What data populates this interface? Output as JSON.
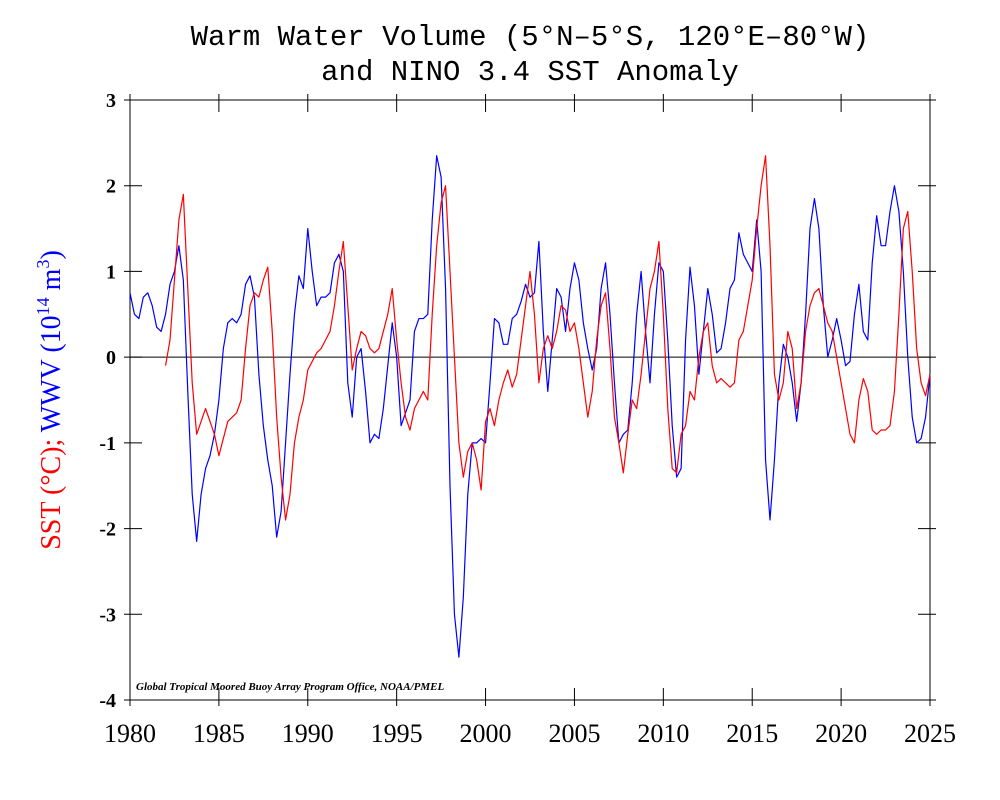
{
  "chart_data": {
    "type": "line",
    "title": [
      "Warm Water Volume (5°N–5°S, 120°E–80°W)",
      "and NINO 3.4 SST Anomaly"
    ],
    "ylabel": {
      "sst": "SST (°C);",
      "wwv": [
        "WWV (10",
        "14",
        " m",
        "3",
        ")"
      ]
    },
    "annotation": "Global Tropical Moored Buoy Array Program Office, NOAA/PMEL",
    "xlim": [
      1980,
      2025
    ],
    "xticks": [
      1980,
      1985,
      1990,
      1995,
      2000,
      2005,
      2010,
      2015,
      2020,
      2025
    ],
    "ylim": [
      -4,
      3
    ],
    "yticks": [
      -4,
      -3,
      -2,
      -1,
      0,
      1,
      2,
      3
    ],
    "zero_line": true,
    "x": [
      1980,
      1980.25,
      1980.5,
      1980.75,
      1981,
      1981.25,
      1981.5,
      1981.75,
      1982,
      1982.25,
      1982.5,
      1982.75,
      1983,
      1983.25,
      1983.5,
      1983.75,
      1984,
      1984.25,
      1984.5,
      1984.75,
      1985,
      1985.25,
      1985.5,
      1985.75,
      1986,
      1986.25,
      1986.5,
      1986.75,
      1987,
      1987.25,
      1987.5,
      1987.75,
      1988,
      1988.25,
      1988.5,
      1988.75,
      1989,
      1989.25,
      1989.5,
      1989.75,
      1990,
      1990.25,
      1990.5,
      1990.75,
      1991,
      1991.25,
      1991.5,
      1991.75,
      1992,
      1992.25,
      1992.5,
      1992.75,
      1993,
      1993.25,
      1993.5,
      1993.75,
      1994,
      1994.25,
      1994.5,
      1994.75,
      1995,
      1995.25,
      1995.5,
      1995.75,
      1996,
      1996.25,
      1996.5,
      1996.75,
      1997,
      1997.25,
      1997.5,
      1997.75,
      1998,
      1998.25,
      1998.5,
      1998.75,
      1999,
      1999.25,
      1999.5,
      1999.75,
      2000,
      2000.25,
      2000.5,
      2000.75,
      2001,
      2001.25,
      2001.5,
      2001.75,
      2002,
      2002.25,
      2002.5,
      2002.75,
      2003,
      2003.25,
      2003.5,
      2003.75,
      2004,
      2004.25,
      2004.5,
      2004.75,
      2005,
      2005.25,
      2005.5,
      2005.75,
      2006,
      2006.25,
      2006.5,
      2006.75,
      2007,
      2007.25,
      2007.5,
      2007.75,
      2008,
      2008.25,
      2008.5,
      2008.75,
      2009,
      2009.25,
      2009.5,
      2009.75,
      2010,
      2010.25,
      2010.5,
      2010.75,
      2011,
      2011.25,
      2011.5,
      2011.75,
      2012,
      2012.25,
      2012.5,
      2012.75,
      2013,
      2013.25,
      2013.5,
      2013.75,
      2014,
      2014.25,
      2014.5,
      2014.75,
      2015,
      2015.25,
      2015.5,
      2015.75,
      2016,
      2016.25,
      2016.5,
      2016.75,
      2017,
      2017.25,
      2017.5,
      2017.75,
      2018,
      2018.25,
      2018.5,
      2018.75,
      2019,
      2019.25,
      2019.5,
      2019.75,
      2020,
      2020.25,
      2020.5,
      2020.75,
      2021,
      2021.25,
      2021.5,
      2021.75,
      2022,
      2022.25,
      2022.5,
      2022.75,
      2023,
      2023.25,
      2023.5,
      2023.75,
      2024,
      2024.25,
      2024.5,
      2024.75,
      2025
    ],
    "series": [
      {
        "color": "#0000ff",
        "values": [
          0.75,
          0.5,
          0.45,
          0.7,
          0.75,
          0.6,
          0.35,
          0.3,
          0.5,
          0.85,
          1.0,
          1.3,
          0.9,
          -0.4,
          -1.6,
          -2.15,
          -1.6,
          -1.3,
          -1.15,
          -0.9,
          -0.5,
          0.1,
          0.4,
          0.45,
          0.4,
          0.5,
          0.85,
          0.95,
          0.7,
          -0.2,
          -0.8,
          -1.2,
          -1.5,
          -2.1,
          -1.8,
          -1.0,
          -0.2,
          0.5,
          0.95,
          0.8,
          1.5,
          1.0,
          0.6,
          0.7,
          0.7,
          0.75,
          1.1,
          1.2,
          1.0,
          -0.3,
          -0.7,
          0.0,
          0.1,
          -0.4,
          -1.0,
          -0.9,
          -0.95,
          -0.6,
          -0.1,
          0.4,
          0.0,
          -0.8,
          -0.65,
          -0.5,
          0.3,
          0.45,
          0.45,
          0.5,
          1.6,
          2.35,
          2.1,
          0.8,
          -1.5,
          -3.0,
          -3.5,
          -2.8,
          -1.6,
          -1.0,
          -1.0,
          -0.95,
          -1.0,
          -0.3,
          0.45,
          0.4,
          0.15,
          0.15,
          0.45,
          0.5,
          0.65,
          0.85,
          0.7,
          0.75,
          1.35,
          0.3,
          -0.4,
          0.2,
          0.8,
          0.7,
          0.3,
          0.8,
          1.1,
          0.9,
          0.4,
          0.1,
          -0.15,
          0.1,
          0.8,
          1.1,
          0.5,
          -0.3,
          -1.0,
          -0.9,
          -0.85,
          -0.3,
          0.5,
          1.0,
          0.3,
          -0.3,
          0.5,
          1.1,
          1.0,
          0.2,
          -0.8,
          -1.4,
          -1.3,
          0.2,
          1.05,
          0.6,
          -0.2,
          0.3,
          0.8,
          0.5,
          0.05,
          0.1,
          0.4,
          0.8,
          0.9,
          1.45,
          1.2,
          1.1,
          1.0,
          1.6,
          1.0,
          -1.2,
          -1.9,
          -1.2,
          -0.3,
          0.15,
          0.0,
          -0.3,
          -0.75,
          -0.3,
          0.5,
          1.5,
          1.85,
          1.5,
          0.6,
          0.0,
          0.2,
          0.45,
          0.2,
          -0.1,
          -0.05,
          0.5,
          0.85,
          0.3,
          0.2,
          1.1,
          1.65,
          1.3,
          1.3,
          1.7,
          2.0,
          1.7,
          1.0,
          0.0,
          -0.7,
          -1.0,
          -0.95,
          -0.7,
          -0.2
        ]
      },
      {
        "color": "#ff0000",
        "values": [
          null,
          null,
          null,
          null,
          null,
          null,
          null,
          null,
          -0.1,
          0.2,
          0.9,
          1.6,
          1.9,
          0.8,
          -0.3,
          -0.9,
          -0.75,
          -0.6,
          -0.75,
          -0.9,
          -1.15,
          -0.95,
          -0.75,
          -0.7,
          -0.65,
          -0.5,
          0.1,
          0.6,
          0.75,
          0.7,
          0.9,
          1.05,
          0.3,
          -0.7,
          -1.4,
          -1.9,
          -1.6,
          -1.0,
          -0.7,
          -0.5,
          -0.15,
          -0.05,
          0.05,
          0.1,
          0.2,
          0.3,
          0.6,
          1.0,
          1.35,
          0.6,
          -0.15,
          0.1,
          0.3,
          0.25,
          0.1,
          0.05,
          0.1,
          0.3,
          0.5,
          0.8,
          0.2,
          -0.3,
          -0.7,
          -0.85,
          -0.6,
          -0.5,
          -0.4,
          -0.5,
          0.5,
          1.3,
          1.8,
          2.0,
          1.0,
          0.0,
          -1.0,
          -1.4,
          -1.1,
          -1.0,
          -1.2,
          -1.55,
          -0.75,
          -0.6,
          -0.8,
          -0.5,
          -0.3,
          -0.15,
          -0.35,
          -0.2,
          0.2,
          0.6,
          1.0,
          0.5,
          -0.3,
          0.1,
          0.25,
          0.1,
          0.3,
          0.6,
          0.55,
          0.3,
          0.4,
          0.1,
          -0.3,
          -0.7,
          -0.4,
          0.2,
          0.6,
          0.75,
          0.1,
          -0.7,
          -1.0,
          -1.35,
          -0.9,
          -0.5,
          -0.6,
          -0.2,
          0.3,
          0.8,
          1.0,
          1.35,
          0.5,
          -0.6,
          -1.3,
          -1.35,
          -0.9,
          -0.8,
          -0.4,
          -0.5,
          0.0,
          0.3,
          0.4,
          -0.1,
          -0.3,
          -0.25,
          -0.3,
          -0.35,
          -0.3,
          0.2,
          0.3,
          0.6,
          0.9,
          1.5,
          2.0,
          2.35,
          1.3,
          -0.2,
          -0.5,
          -0.3,
          0.3,
          0.1,
          -0.6,
          -0.3,
          0.3,
          0.6,
          0.75,
          0.8,
          0.6,
          0.4,
          0.3,
          0.0,
          -0.3,
          -0.6,
          -0.9,
          -1.0,
          -0.5,
          -0.25,
          -0.4,
          -0.85,
          -0.9,
          -0.85,
          -0.85,
          -0.8,
          -0.4,
          0.5,
          1.5,
          1.7,
          1.0,
          0.1,
          -0.3,
          -0.45,
          -0.2
        ]
      }
    ]
  }
}
